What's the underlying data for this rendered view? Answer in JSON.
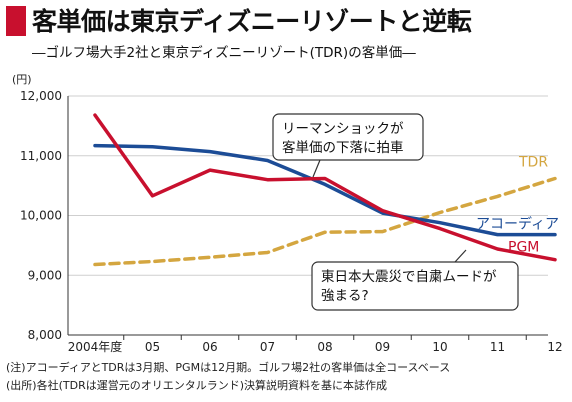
{
  "header": {
    "title": "客単価は東京ディズニーリゾートと逆転",
    "subtitle": "―ゴルフ場大手2社と東京ディズニーリゾート(TDR)の客単価―",
    "accent_color": "#c8102e"
  },
  "chart_data": {
    "type": "line",
    "ylabel": "(円)",
    "ylim": [
      8000,
      12000
    ],
    "yticks": [
      "8,000",
      "9,000",
      "10,000",
      "11,000",
      "12,000"
    ],
    "ytick_values": [
      8000,
      9000,
      10000,
      11000,
      12000
    ],
    "categories": [
      "2004年度",
      "05",
      "06",
      "07",
      "08",
      "09",
      "10",
      "11",
      "12"
    ],
    "grid": "horizontal",
    "series": [
      {
        "name": "TDR",
        "style": "dashed",
        "color": "#d4a640",
        "values": [
          9180,
          9230,
          9300,
          9380,
          9720,
          9730,
          10050,
          10320,
          10620
        ]
      },
      {
        "name": "アコーディア",
        "style": "solid",
        "color": "#1c4c96",
        "values": [
          11170,
          11150,
          11070,
          10920,
          10520,
          10040,
          9880,
          9680,
          9680
        ]
      },
      {
        "name": "PGM",
        "style": "solid",
        "color": "#c8102e",
        "values": [
          11680,
          10330,
          10760,
          10600,
          10620,
          10080,
          9780,
          9440,
          9260
        ]
      }
    ],
    "annotations": [
      {
        "text_lines": [
          "リーマンショックが",
          "客単価の下落に拍車"
        ]
      },
      {
        "text_lines": [
          "東日本大震災で自粛ムードが",
          "強まる?"
        ]
      }
    ]
  },
  "footnotes": {
    "note": "(注)アコーディアとTDRは3月期、PGMは12月期。ゴルフ場2社の客単価は全コースベース",
    "source": "(出所)各社(TDRは運営元のオリエンタルランド)決算説明資料を基に本誌作成"
  }
}
